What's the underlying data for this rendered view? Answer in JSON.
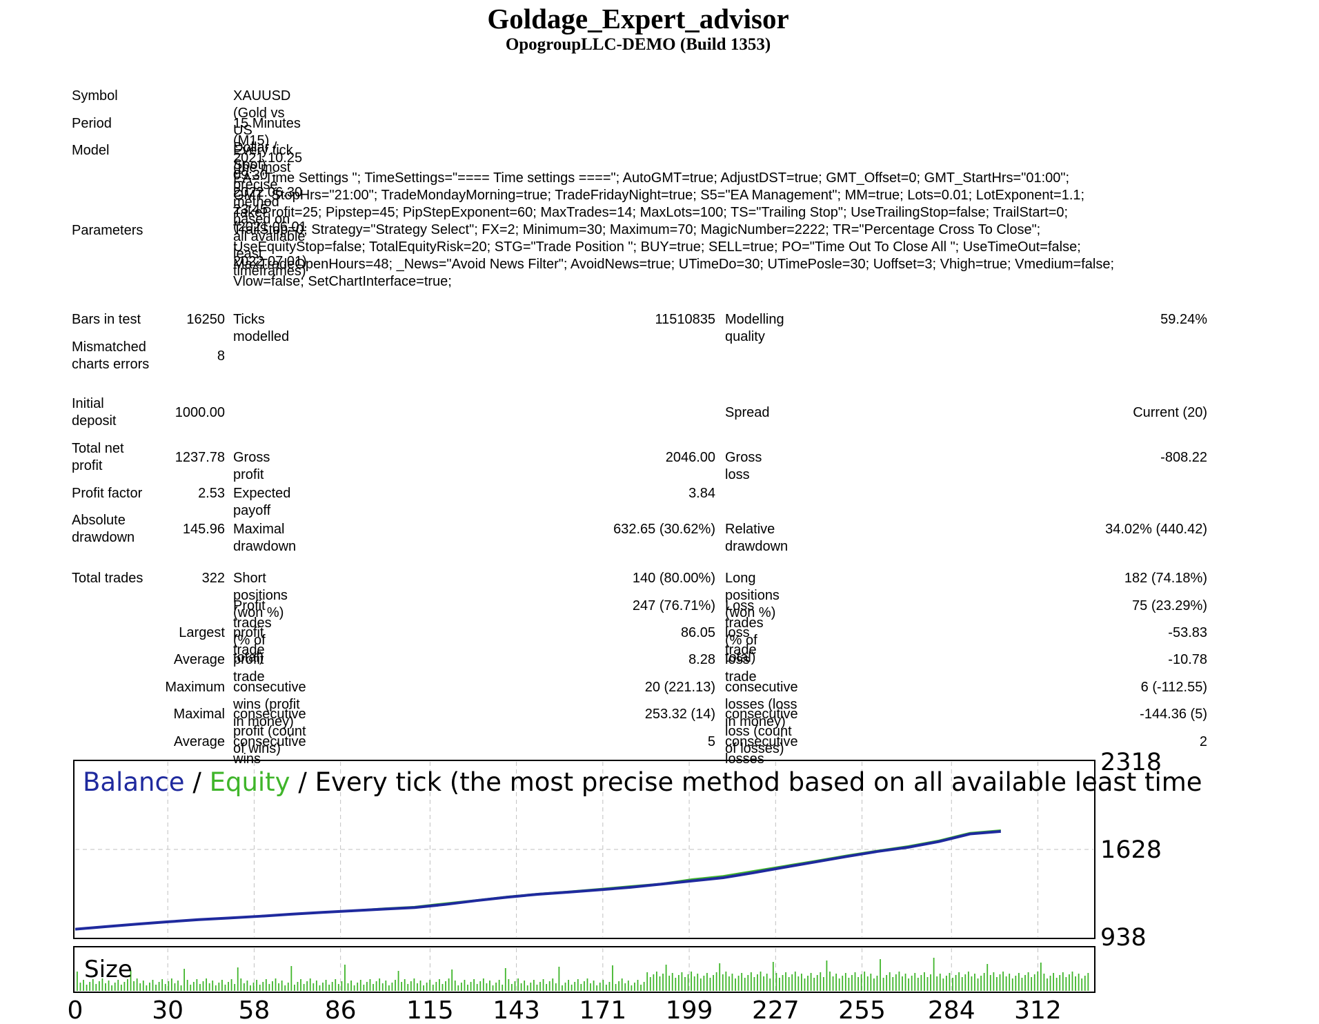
{
  "header": {
    "title": "Goldage_Expert_advisor",
    "subtitle": "OpogroupLLC-DEMO (Build 1353)"
  },
  "info": {
    "symbol_label": "Symbol",
    "symbol_value": "XAUUSD (Gold vs US Dollar / Spot)",
    "period_label": "Period",
    "period_value": "15 Minutes (M15) 2021.10.25 09:30 - 2022.06.30 23:45 (2021.06.01 - 2022.07.01)",
    "model_label": "Model",
    "model_value": "Every tick (the most precise method based on all available least timeframes)",
    "parameters_label": "Parameters",
    "parameters_lines": [
      "EA=\"Time Settings \"; TimeSettings=\"==== Time settings ====\"; AutoGMT=true; AdjustDST=true; GMT_Offset=0; GMT_StartHrs=\"01:00\";",
      "GMT_StopHrs=\"21:00\"; TradeMondayMorning=true; TradeFridayNight=true; S5=\"EA Management\"; MM=true; Lots=0.01; LotExponent=1.1;",
      "TakeProfit=25; Pipstep=45; PipStepExponent=60; MaxTrades=14; MaxLots=100; TS=\"Trailing Stop\"; UseTrailingStop=false; TrailStart=0;",
      "TrailStop=0; Strategy=\"Strategy Select\"; FX=2; Minimum=30; Maximum=70; MagicNumber=2222; TR=\"Percentage Cross To Close\";",
      "UseEquityStop=false; TotalEquityRisk=20; STG=\"Trade Position \"; BUY=true; SELL=true; PO=\"Time Out To Close All \"; UseTimeOut=false;",
      "MaxTradeOpenHours=48; _News=\"Avoid News Filter\"; AvoidNews=true; UTimeDo=30; UTimePosle=30; Uoffset=3; Vhigh=true; Vmedium=false;",
      "Vlow=false; SetChartInterface=true;"
    ]
  },
  "stats": {
    "bars_label": "Bars in test",
    "bars_value": "16250",
    "ticks_label": "Ticks modelled",
    "ticks_value": "11510835",
    "quality_label": "Modelling quality",
    "quality_value": "59.24%",
    "mismatched_label_1": "Mismatched",
    "mismatched_label_2": "charts errors",
    "mismatched_value": "8",
    "deposit_label_1": "Initial",
    "deposit_label_2": "deposit",
    "deposit_value": "1000.00",
    "spread_label": "Spread",
    "spread_value": "Current (20)",
    "netprofit_label_1": "Total net",
    "netprofit_label_2": "profit",
    "netprofit_value": "1237.78",
    "grossprofit_label": "Gross profit",
    "grossprofit_value": "2046.00",
    "grossloss_label": "Gross loss",
    "grossloss_value": "-808.22",
    "pf_label": "Profit factor",
    "pf_value": "2.53",
    "payoff_label": "Expected payoff",
    "payoff_value": "3.84",
    "absdd_label_1": "Absolute",
    "absdd_label_2": "drawdown",
    "absdd_value": "145.96",
    "maxdd_label": "Maximal drawdown",
    "maxdd_value": "632.65 (30.62%)",
    "reldd_label": "Relative drawdown",
    "reldd_value": "34.02% (440.42)",
    "trades_label": "Total trades",
    "trades_value": "322",
    "short_label": "Short positions (won %)",
    "short_value": "140 (80.00%)",
    "long_label": "Long positions (won %)",
    "long_value": "182 (74.18%)",
    "profittrades_label": "Profit trades (% of total)",
    "profittrades_value": "247 (76.71%)",
    "losstrades_label": "Loss trades (% of total)",
    "losstrades_value": "75 (23.29%)",
    "largest_label": "Largest",
    "largest_profit_label": "profit trade",
    "largest_profit_value": "86.05",
    "largest_loss_label": "loss trade",
    "largest_loss_value": "-53.83",
    "average_label": "Average",
    "average_profit_label": "profit trade",
    "average_profit_value": "8.28",
    "average_loss_label": "loss trade",
    "average_loss_value": "-10.78",
    "maximum_label": "Maximum",
    "maxwins_label": "consecutive wins (profit in money)",
    "maxwins_value": "20 (221.13)",
    "maxlosses_label": "consecutive losses (loss in money)",
    "maxlosses_value": "6 (-112.55)",
    "maximal_label": "Maximal",
    "maxprofit_label": "consecutive profit (count of wins)",
    "maxprofit_value": "253.32 (14)",
    "maxloss_label": "consecutive loss (count of losses)",
    "maxloss_value": "-144.36 (5)",
    "avgcons_label": "Average",
    "avgwins_label": "consecutive wins",
    "avgwins_value": "5",
    "avglosses_label": "consecutive losses",
    "avglosses_value": "2"
  },
  "chart_data": {
    "type": "line",
    "legend_parts": [
      "Balance",
      " / ",
      "Equity",
      " / Every tick (the most precise method based on all available least time"
    ],
    "ylim": [
      938,
      2318
    ],
    "y_ticks": [
      "2318",
      "1628",
      "938"
    ],
    "x_ticks": [
      "0",
      "30",
      "58",
      "86",
      "115",
      "143",
      "171",
      "199",
      "227",
      "255",
      "284",
      "312"
    ],
    "size_label": "Size",
    "colors": {
      "balance": "#1f2a9e",
      "equity": "#3fb52a",
      "grid": "#c0c0c0",
      "size_bars": "#3fb52a"
    },
    "series": [
      {
        "name": "Balance",
        "x": [
          0,
          10,
          20,
          30,
          40,
          50,
          60,
          70,
          80,
          90,
          100,
          110,
          120,
          130,
          140,
          150,
          160,
          170,
          180,
          190,
          200,
          210,
          220,
          230,
          240,
          250,
          260,
          270,
          280,
          290,
          300
        ],
        "values": [
          1000,
          1020,
          1040,
          1058,
          1075,
          1088,
          1102,
          1118,
          1132,
          1145,
          1158,
          1170,
          1195,
          1225,
          1252,
          1275,
          1292,
          1310,
          1330,
          1355,
          1380,
          1405,
          1445,
          1488,
          1530,
          1572,
          1612,
          1645,
          1690,
          1750,
          1770
        ]
      },
      {
        "name": "Equity",
        "x": [
          0,
          10,
          20,
          30,
          40,
          50,
          60,
          70,
          80,
          90,
          100,
          110,
          120,
          130,
          140,
          150,
          160,
          170,
          180,
          190,
          200,
          210,
          220,
          230,
          240,
          250,
          260,
          270,
          280,
          290,
          300
        ],
        "values": [
          1000,
          1022,
          1042,
          1060,
          1077,
          1090,
          1104,
          1120,
          1135,
          1148,
          1165,
          1178,
          1205,
          1230,
          1258,
          1280,
          1298,
          1318,
          1340,
          1360,
          1395,
          1420,
          1460,
          1500,
          1540,
          1582,
          1620,
          1655,
          1700,
          1760,
          1780
        ]
      }
    ]
  }
}
